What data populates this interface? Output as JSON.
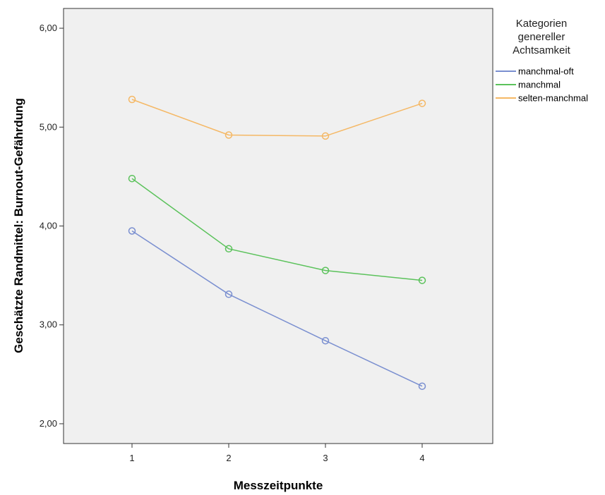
{
  "chart_data": {
    "type": "line",
    "xlabel": "Messzeitpunkte",
    "ylabel": "Geschätzte Randmittel: Burnout-Gefährdung",
    "categories": [
      "1",
      "2",
      "3",
      "4"
    ],
    "ylim": [
      1.8,
      6.2
    ],
    "yticks": [
      "2,00",
      "3,00",
      "4,00",
      "5,00",
      "6,00"
    ],
    "grid": false,
    "legend": {
      "title_lines": [
        "Kategorien",
        "genereller",
        "Achtsamkeit"
      ],
      "placement": "right"
    },
    "series": [
      {
        "name": "manchmal-oft",
        "color": "#7a8fd0",
        "values": [
          3.95,
          3.31,
          2.84,
          2.38
        ]
      },
      {
        "name": "manchmal",
        "color": "#5bc25b",
        "values": [
          4.48,
          3.77,
          3.55,
          3.45
        ]
      },
      {
        "name": "selten-manchmal",
        "color": "#f5b865",
        "values": [
          5.28,
          4.92,
          4.91,
          5.24
        ]
      }
    ]
  }
}
